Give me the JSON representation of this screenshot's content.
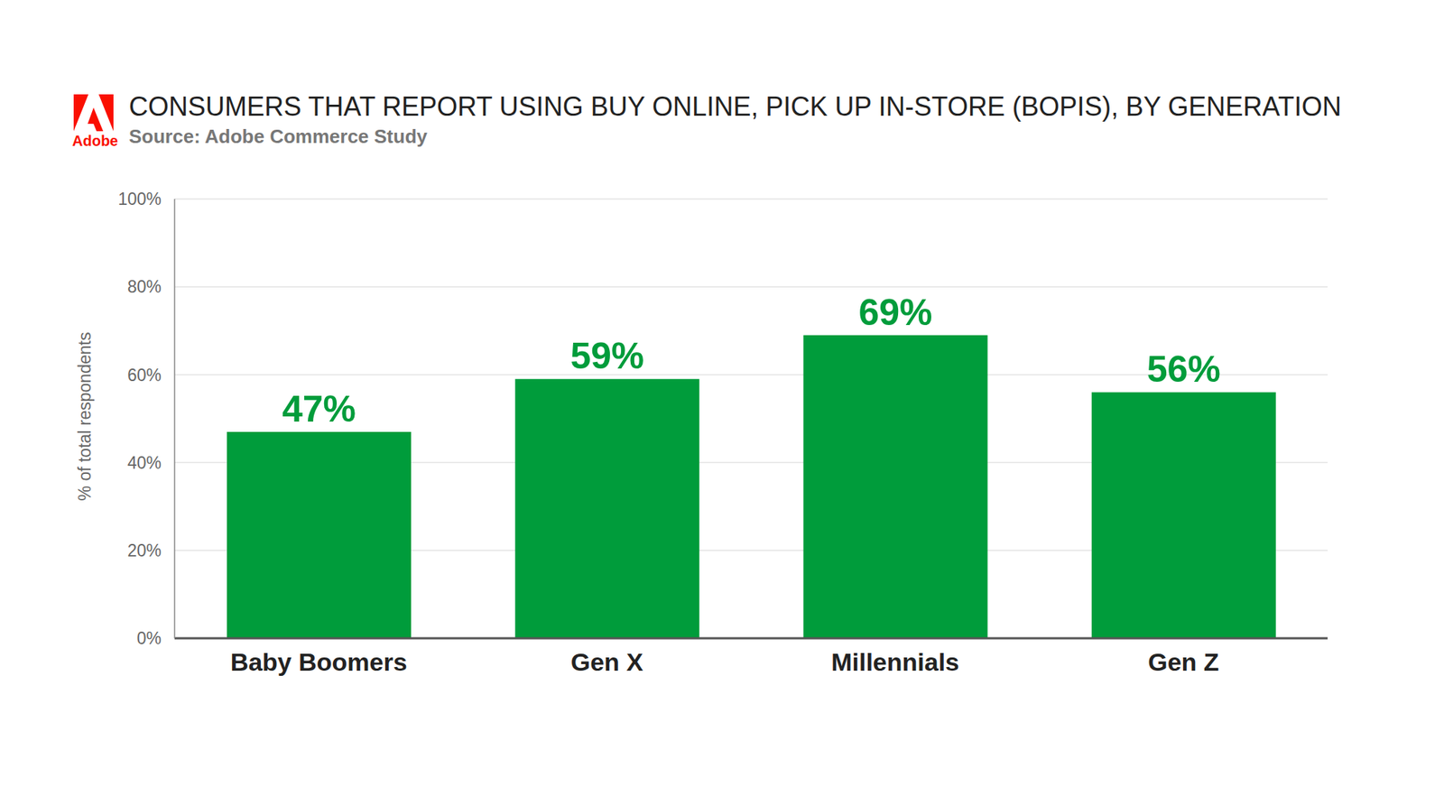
{
  "chart_data": {
    "type": "bar",
    "title": "CONSUMERS THAT REPORT USING BUY ONLINE, PICK UP IN-STORE (BOPIS), BY GENERATION",
    "subtitle": "Source: Adobe Commerce Study",
    "annotations": [
      "Adobe"
    ],
    "y_label": "% of total respondents",
    "categories": [
      "Baby Boomers",
      "Gen X",
      "Millennials",
      "Gen Z"
    ],
    "values": [
      47,
      59,
      69,
      56
    ],
    "value_labels": [
      "47%",
      "59%",
      "69%",
      "56%"
    ],
    "data_labels": true,
    "color": "#009c3b",
    "ylim": [
      0,
      100
    ],
    "yticks": [
      {
        "value": 0,
        "label": "0%"
      },
      {
        "value": 20,
        "label": "20%"
      },
      {
        "value": 40,
        "label": "40%"
      },
      {
        "value": 60,
        "label": "60%"
      },
      {
        "value": 80,
        "label": "80%"
      },
      {
        "value": 100,
        "label": "100%"
      }
    ],
    "grid": true
  }
}
